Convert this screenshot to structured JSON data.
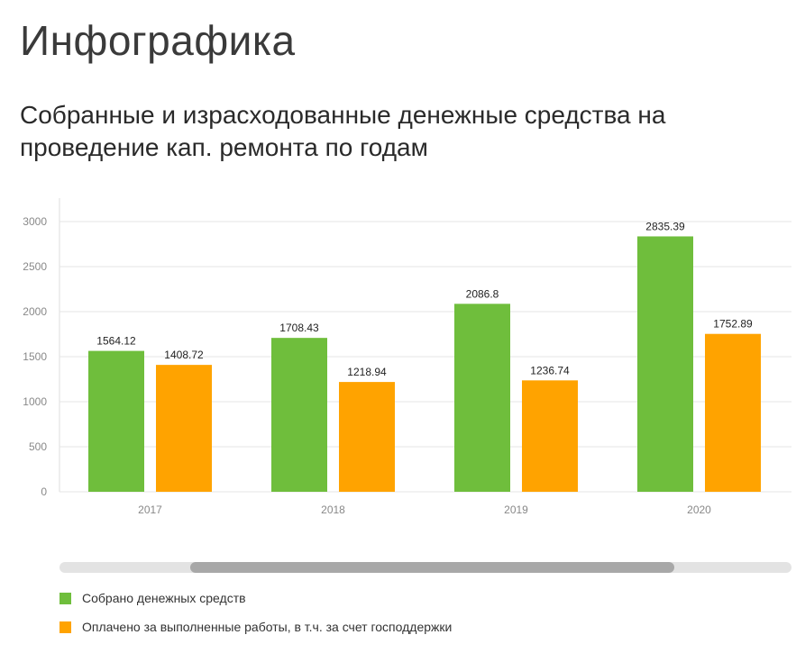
{
  "header": {
    "title": "Инфографика"
  },
  "chart_data": {
    "type": "bar",
    "title": "Собранные и израсходованные денежные средства на проведение кап. ремонта по годам",
    "categories": [
      "2017",
      "2018",
      "2019",
      "2020"
    ],
    "series": [
      {
        "name": "Собрано денежных средств",
        "color": "#6fbe3c",
        "values": [
          1564.12,
          1708.43,
          2086.8,
          2835.39
        ],
        "labels": [
          "1564.12",
          "1708.43",
          "2086.8",
          "2835.39"
        ]
      },
      {
        "name": "Оплачено за выполненные работы, в т.ч. за счет господдержки",
        "color": "#ffa300",
        "values": [
          1408.72,
          1218.94,
          1236.74,
          1752.89
        ],
        "labels": [
          "1408.72",
          "1218.94",
          "1236.74",
          "1752.89"
        ]
      }
    ],
    "yticks": [
      "0",
      "500",
      "1000",
      "1500",
      "2000",
      "2500",
      "3000"
    ],
    "ylim": [
      0,
      3000
    ],
    "grid": true,
    "legend": "bottom-left"
  }
}
